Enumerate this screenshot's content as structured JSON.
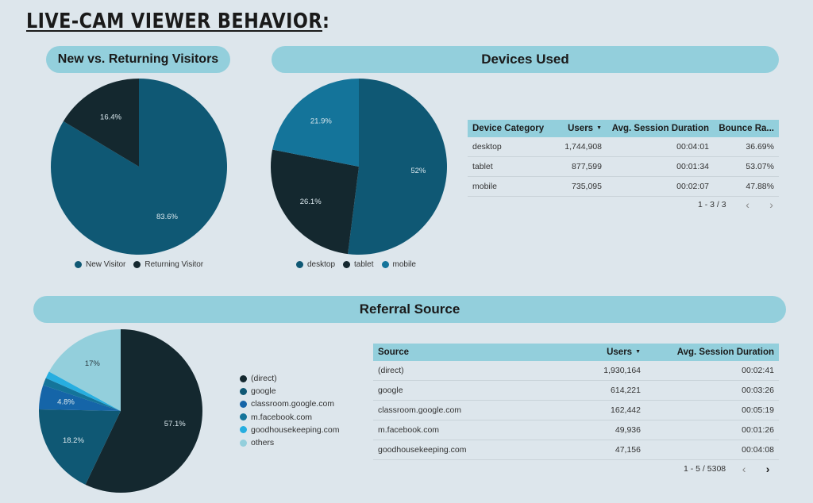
{
  "page": {
    "title_main": "LIVE-CAM VIEWER BEHAVIOR",
    "title_colon": ":"
  },
  "sections": {
    "visitors_title": "New vs. Returning Visitors",
    "devices_title": "Devices Used",
    "referral_title": "Referral Source"
  },
  "colors": {
    "background": "#dde6ec",
    "pill": "#93cfdc",
    "dark_teal": "#0f5874",
    "near_black": "#14282f",
    "mid_teal": "#14749a",
    "blue": "#1565a8",
    "cyan": "#27aee0",
    "light_cyan": "#93cfdc"
  },
  "devices_table": {
    "columns": [
      "Device Category",
      "Users",
      "Avg. Session Duration",
      "Bounce Ra..."
    ],
    "sort_indicator": "▼",
    "rows": [
      [
        "desktop",
        "1,744,908",
        "00:04:01",
        "36.69%"
      ],
      [
        "tablet",
        "877,599",
        "00:01:34",
        "53.07%"
      ],
      [
        "mobile",
        "735,095",
        "00:02:07",
        "47.88%"
      ]
    ],
    "pagination": "1 - 3 / 3",
    "prev": "‹",
    "next": "›"
  },
  "referral_table": {
    "columns": [
      "Source",
      "Users",
      "Avg. Session Duration"
    ],
    "sort_indicator": "▼",
    "rows": [
      [
        "(direct)",
        "1,930,164",
        "00:02:41"
      ],
      [
        "google",
        "614,221",
        "00:03:26"
      ],
      [
        "classroom.google.com",
        "162,442",
        "00:05:19"
      ],
      [
        "m.facebook.com",
        "49,936",
        "00:01:26"
      ],
      [
        "goodhousekeeping.com",
        "47,156",
        "00:04:08"
      ]
    ],
    "pagination": "1 - 5 / 5308",
    "prev": "‹",
    "next": "›"
  },
  "chart_data": [
    {
      "type": "pie",
      "title": "New vs. Returning Visitors",
      "categories": [
        "New Visitor",
        "Returning Visitor"
      ],
      "values": [
        83.6,
        16.4
      ],
      "labels": [
        "83.6%",
        "16.4%"
      ],
      "colors": [
        "#0f5874",
        "#14282f"
      ],
      "legend": "bottom"
    },
    {
      "type": "pie",
      "title": "Devices Used",
      "categories": [
        "desktop",
        "tablet",
        "mobile"
      ],
      "values": [
        52,
        26.1,
        21.9
      ],
      "labels": [
        "52%",
        "26.1%",
        "21.9%"
      ],
      "colors": [
        "#0f5874",
        "#14282f",
        "#14749a"
      ],
      "legend": "bottom"
    },
    {
      "type": "pie",
      "title": "Referral Source",
      "categories": [
        "(direct)",
        "google",
        "classroom.google.com",
        "m.facebook.com",
        "goodhousekeeping.com",
        "others"
      ],
      "values": [
        57.1,
        18.2,
        4.8,
        1.5,
        1.4,
        17
      ],
      "labels": [
        "57.1%",
        "18.2%",
        "4.8%",
        "",
        "",
        "17%"
      ],
      "colors": [
        "#14282f",
        "#0f5874",
        "#1565a8",
        "#14749a",
        "#27aee0",
        "#93cfdc"
      ],
      "legend": "right"
    }
  ]
}
